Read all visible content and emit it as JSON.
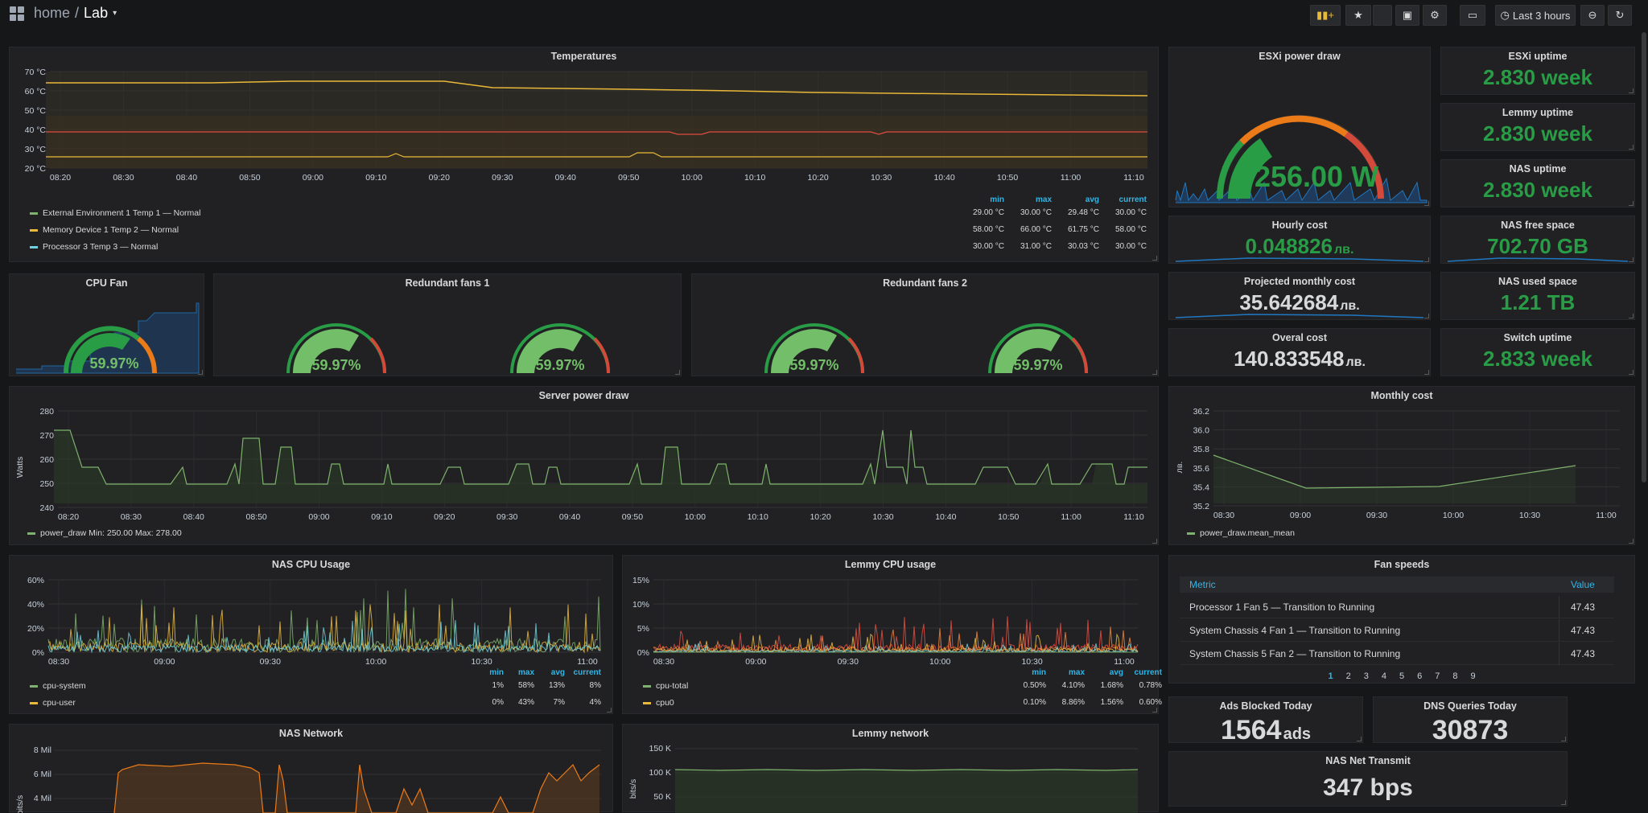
{
  "topbar": {
    "home": "home",
    "sep": "/",
    "dashboard": "Lab",
    "time_range": "Last 3 hours"
  },
  "temps": {
    "title": "Temperatures",
    "yticks": [
      "70 °C",
      "60 °C",
      "50 °C",
      "40 °C",
      "30 °C",
      "20 °C"
    ],
    "xticks": [
      "08:20",
      "08:30",
      "08:40",
      "08:50",
      "09:00",
      "09:10",
      "09:20",
      "09:30",
      "09:40",
      "09:50",
      "10:00",
      "10:10",
      "10:20",
      "10:30",
      "10:40",
      "10:50",
      "11:00",
      "11:10"
    ],
    "headers": [
      "min",
      "max",
      "avg",
      "current"
    ],
    "rows": [
      {
        "name": "External Environment 1 Temp 1 — Normal",
        "color": "#7eb26d",
        "min": "29.00 °C",
        "max": "30.00 °C",
        "avg": "29.48 °C",
        "current": "30.00 °C"
      },
      {
        "name": "Memory Device 1 Temp 2 — Normal",
        "color": "#eab839",
        "min": "58.00 °C",
        "max": "66.00 °C",
        "avg": "61.75 °C",
        "current": "58.00 °C"
      },
      {
        "name": "Processor 3 Temp 3 — Normal",
        "color": "#6ed0e0",
        "min": "30.00 °C",
        "max": "31.00 °C",
        "avg": "30.03 °C",
        "current": "30.00 °C"
      }
    ]
  },
  "esxi_power": {
    "title": "ESXi power draw",
    "value": "256.00 W"
  },
  "stats": {
    "esxi_uptime": {
      "title": "ESXi uptime",
      "value": "2.830 week"
    },
    "lemmy_uptime": {
      "title": "Lemmy uptime",
      "value": "2.830 week"
    },
    "nas_uptime": {
      "title": "NAS uptime",
      "value": "2.830 week"
    },
    "hourly_cost": {
      "title": "Hourly cost",
      "value": "0.048826",
      "unit": "лв."
    },
    "nas_free": {
      "title": "NAS free space",
      "value": "702.70 GB"
    },
    "projected": {
      "title": "Projected monthly cost",
      "value": "35.642684",
      "unit": "лв."
    },
    "nas_used": {
      "title": "NAS used space",
      "value": "1.21 TB"
    },
    "overall": {
      "title": "Overal cost",
      "value": "140.833548",
      "unit": "лв."
    },
    "switch_uptime": {
      "title": "Switch uptime",
      "value": "2.833 week"
    },
    "ads": {
      "title": "Ads Blocked Today",
      "value": "1564",
      "unit": "ads"
    },
    "dns": {
      "title": "DNS Queries Today",
      "value": "30873"
    },
    "nas_tx": {
      "title": "NAS Net Transmit",
      "value": "347 bps"
    }
  },
  "cpu_fan": {
    "title": "CPU Fan",
    "value": "59.97%"
  },
  "fans1": {
    "title": "Redundant fans 1",
    "a": "59.97%",
    "b": "59.97%"
  },
  "fans2": {
    "title": "Redundant fans 2",
    "a": "59.97%",
    "b": "59.97%"
  },
  "server_power": {
    "title": "Server power draw",
    "ylabel": "Watts",
    "yticks": [
      "280",
      "270",
      "260",
      "250",
      "240"
    ],
    "xticks": [
      "08:20",
      "08:30",
      "08:40",
      "08:50",
      "09:00",
      "09:10",
      "09:20",
      "09:30",
      "09:40",
      "09:50",
      "10:00",
      "10:10",
      "10:20",
      "10:30",
      "10:40",
      "10:50",
      "11:00",
      "11:10"
    ],
    "legend": "power_draw  Min: 250.00  Max: 278.00"
  },
  "monthly": {
    "title": "Monthly cost",
    "ylabel": "лв.",
    "yticks": [
      "36.2",
      "36.0",
      "35.8",
      "35.6",
      "35.4",
      "35.2"
    ],
    "xticks": [
      "08:30",
      "09:00",
      "09:30",
      "10:00",
      "10:30",
      "11:00"
    ],
    "legend": "power_draw.mean_mean"
  },
  "nas_cpu": {
    "title": "NAS CPU Usage",
    "yticks": [
      "60%",
      "40%",
      "20%",
      "0%"
    ],
    "xticks": [
      "08:30",
      "09:00",
      "09:30",
      "10:00",
      "10:30",
      "11:00"
    ],
    "headers": [
      "min",
      "max",
      "avg",
      "current"
    ],
    "rows": [
      {
        "name": "cpu-system",
        "color": "#7eb26d",
        "min": "1%",
        "max": "58%",
        "avg": "13%",
        "current": "8%"
      },
      {
        "name": "cpu-user",
        "color": "#eab839",
        "min": "0%",
        "max": "43%",
        "avg": "7%",
        "current": "4%"
      }
    ]
  },
  "lemmy_cpu": {
    "title": "Lemmy CPU usage",
    "yticks": [
      "15%",
      "10%",
      "5%",
      "0%"
    ],
    "xticks": [
      "08:30",
      "09:00",
      "09:30",
      "10:00",
      "10:30",
      "11:00"
    ],
    "headers": [
      "min",
      "max",
      "avg",
      "current"
    ],
    "rows": [
      {
        "name": "cpu-total",
        "color": "#7eb26d",
        "min": "0.50%",
        "max": "4.10%",
        "avg": "1.68%",
        "current": "0.78%"
      },
      {
        "name": "cpu0",
        "color": "#eab839",
        "min": "0.10%",
        "max": "8.86%",
        "avg": "1.56%",
        "current": "0.60%"
      }
    ]
  },
  "fan_speeds": {
    "title": "Fan speeds",
    "col_metric": "Metric",
    "col_value": "Value",
    "rows": [
      {
        "metric": "Processor 1 Fan 5 — Transition to Running",
        "value": "47.43"
      },
      {
        "metric": "System Chassis 4 Fan 1 — Transition to Running",
        "value": "47.43"
      },
      {
        "metric": "System Chassis 5 Fan 2 — Transition to Running",
        "value": "47.43"
      }
    ],
    "pages": [
      "1",
      "2",
      "3",
      "4",
      "5",
      "6",
      "7",
      "8",
      "9"
    ]
  },
  "nas_net": {
    "title": "NAS Network",
    "yticks": [
      "8 Mil",
      "6 Mil",
      "4 Mil"
    ],
    "ylabel": "bits/s"
  },
  "lemmy_net": {
    "title": "Lemmy network",
    "yticks": [
      "150 K",
      "100 K",
      "50 K"
    ],
    "ylabel": "bits/s"
  },
  "colors": {
    "green": "#299c46",
    "orange": "#eb7b18",
    "red": "#d44a3a",
    "yellow": "#eab839",
    "blue": "#33b5e5"
  }
}
